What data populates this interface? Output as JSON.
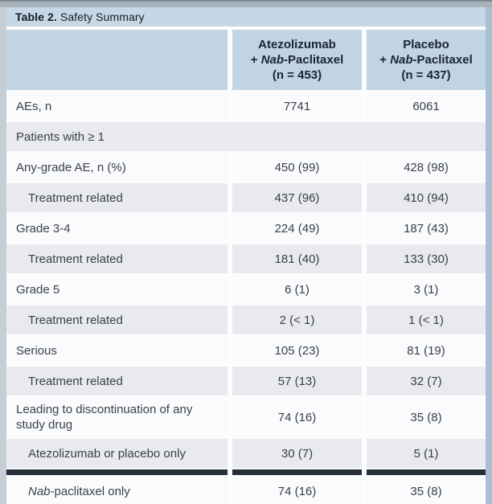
{
  "title": {
    "prefix": "Table 2.",
    "text": "Safety Summary"
  },
  "colors": {
    "title_bg": "#c6d8e5",
    "header_bg": "#c0d4e3",
    "white_row": "#fafbfd",
    "tint_row": "#e8eaef",
    "divider_bar": "#252d39",
    "frame_left": "#c5ced5",
    "frame_right": "#a9bfd2",
    "frame_top": "#a7b2bb",
    "body_text": "#3a4047",
    "header_text": "#1a2530"
  },
  "chart_data": {
    "type": "table",
    "title": "Table 2. Safety Summary",
    "columns": [
      "",
      "Atezolizumab + Nab-Paclitaxel (n = 453)",
      "Placebo + Nab-Paclitaxel (n = 437)"
    ],
    "rows": [
      [
        "AEs, n",
        "7741",
        "6061"
      ],
      [
        "Patients with ≥ 1",
        "",
        ""
      ],
      [
        "Any-grade AE, n (%)",
        "450 (99)",
        "428 (98)"
      ],
      [
        "Treatment related",
        "437 (96)",
        "410 (94)"
      ],
      [
        "Grade 3-4",
        "224 (49)",
        "187 (43)"
      ],
      [
        "Treatment related",
        "181 (40)",
        "133 (30)"
      ],
      [
        "Grade 5",
        "6 (1)",
        "3 (1)"
      ],
      [
        "Treatment related",
        "2 (< 1)",
        "1 (< 1)"
      ],
      [
        "Serious",
        "105 (23)",
        "81 (19)"
      ],
      [
        "Treatment related",
        "57 (13)",
        "32 (7)"
      ],
      [
        "Leading to discontinuation of any study drug",
        "74 (16)",
        "35 (8)"
      ],
      [
        "Atezolizumab or placebo only",
        "30 (7)",
        "5 (1)"
      ],
      [
        "Nab-paclitaxel only",
        "74 (16)",
        "35 (8)"
      ]
    ]
  },
  "header": {
    "col_atezolizumab": {
      "lines": [
        [
          {
            "t": "Atezolizumab"
          }
        ],
        [
          {
            "t": "+ "
          },
          {
            "t": "Nab",
            "i": true
          },
          {
            "t": "-Paclitaxel"
          }
        ],
        [
          {
            "t": "(n = 453)"
          }
        ]
      ]
    },
    "col_placebo": {
      "lines": [
        [
          {
            "t": "Placebo"
          }
        ],
        [
          {
            "t": "+ "
          },
          {
            "t": "Nab",
            "i": true
          },
          {
            "t": "-Paclitaxel"
          }
        ],
        [
          {
            "t": "(n = 437)"
          }
        ]
      ]
    }
  },
  "rows": [
    {
      "type": "data",
      "shade": "white",
      "indent": 0,
      "label": [
        {
          "t": "AEs, n"
        }
      ],
      "v1": "7741",
      "v2": "6061"
    },
    {
      "type": "section",
      "shade": "tint",
      "label": [
        {
          "t": "Patients with ≥ 1"
        }
      ]
    },
    {
      "type": "data",
      "shade": "white",
      "indent": 0,
      "label": [
        {
          "t": "Any-grade AE, n (%)"
        }
      ],
      "v1": "450 (99)",
      "v2": "428 (98)"
    },
    {
      "type": "data",
      "shade": "tint",
      "indent": 1,
      "label": [
        {
          "t": "Treatment related"
        }
      ],
      "v1": "437 (96)",
      "v2": "410 (94)"
    },
    {
      "type": "data",
      "shade": "white",
      "indent": 0,
      "label": [
        {
          "t": "Grade 3-4"
        }
      ],
      "v1": "224 (49)",
      "v2": "187 (43)"
    },
    {
      "type": "data",
      "shade": "tint",
      "indent": 1,
      "label": [
        {
          "t": "Treatment related"
        }
      ],
      "v1": "181 (40)",
      "v2": "133 (30)"
    },
    {
      "type": "data",
      "shade": "white",
      "indent": 0,
      "label": [
        {
          "t": "Grade 5"
        }
      ],
      "v1": "6 (1)",
      "v2": "3 (1)"
    },
    {
      "type": "data",
      "shade": "tint",
      "indent": 1,
      "label": [
        {
          "t": "Treatment related"
        }
      ],
      "v1": "2 (< 1)",
      "v2": "1 (< 1)"
    },
    {
      "type": "data",
      "shade": "white",
      "indent": 0,
      "label": [
        {
          "t": "Serious"
        }
      ],
      "v1": "105 (23)",
      "v2": "81 (19)"
    },
    {
      "type": "data",
      "shade": "tint",
      "indent": 1,
      "label": [
        {
          "t": "Treatment related"
        }
      ],
      "v1": "57 (13)",
      "v2": "32 (7)"
    },
    {
      "type": "data",
      "shade": "white",
      "indent": 0,
      "tall": true,
      "label": [
        {
          "t": "Leading to discontinuation of any study drug"
        }
      ],
      "v1": "74 (16)",
      "v2": "35 (8)"
    },
    {
      "type": "data",
      "shade": "tint",
      "indent": 1,
      "label": [
        {
          "t": "Atezolizumab or placebo only"
        }
      ],
      "v1": "30 (7)",
      "v2": "5 (1)"
    },
    {
      "type": "divider"
    },
    {
      "type": "data",
      "shade": "white",
      "indent": 1,
      "label": [
        {
          "t": "Nab",
          "i": true
        },
        {
          "t": "-paclitaxel only"
        }
      ],
      "v1": "74 (16)",
      "v2": "35 (8)"
    }
  ]
}
